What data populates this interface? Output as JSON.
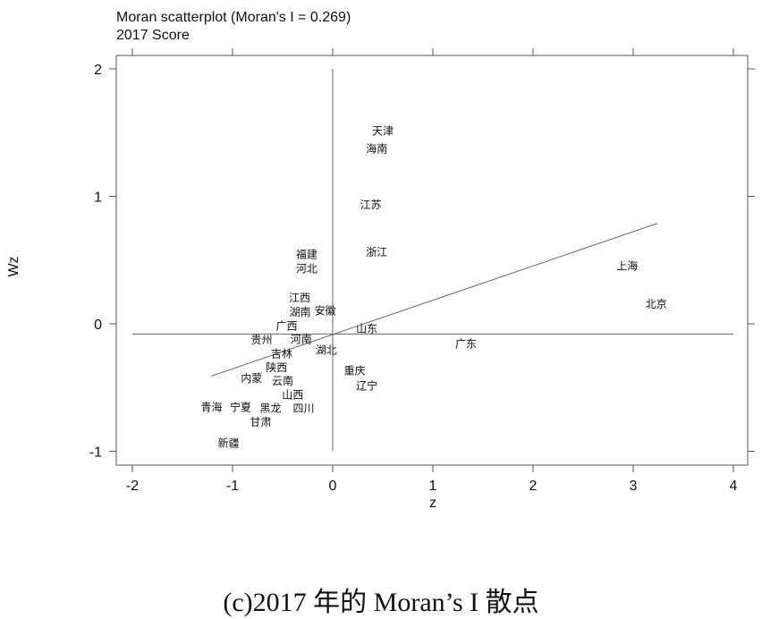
{
  "chart_data": {
    "type": "scatter",
    "title": "Moran scatterplot (Moran's I = 0.269)",
    "subtitle": "2017 Score",
    "xlabel": "z",
    "ylabel": "Wz",
    "xlim": [
      -2,
      4
    ],
    "ylim": [
      -1,
      2
    ],
    "xticks": [
      "-2",
      "-1",
      "0",
      "1",
      "2",
      "3",
      "4"
    ],
    "yticks": [
      "-1",
      "0",
      "1",
      "2"
    ],
    "grid": false,
    "marker": "text-label",
    "reference_lines": {
      "vertical_x": 0,
      "horizontal_y": -0.08
    },
    "fit_line": {
      "slope": 0.269,
      "intercept": -0.084,
      "x_range": [
        -1.21,
        3.24
      ]
    },
    "points": [
      {
        "label": "天津",
        "x": 0.5,
        "y": 1.52
      },
      {
        "label": "海南",
        "x": 0.44,
        "y": 1.38
      },
      {
        "label": "江苏",
        "x": 0.38,
        "y": 0.94
      },
      {
        "label": "浙江",
        "x": 0.44,
        "y": 0.57
      },
      {
        "label": "福建",
        "x": -0.26,
        "y": 0.53
      },
      {
        "label": "河北",
        "x": -0.26,
        "y": 0.46
      },
      {
        "label": "江西",
        "x": -0.33,
        "y": 0.21
      },
      {
        "label": "安徽",
        "x": -0.08,
        "y": 0.11
      },
      {
        "label": "湖南",
        "x": -0.32,
        "y": 0.04
      },
      {
        "label": "广西",
        "x": -0.46,
        "y": 0.0
      },
      {
        "label": "山东",
        "x": 0.34,
        "y": -0.03
      },
      {
        "label": "上海",
        "x": 2.94,
        "y": 0.46
      },
      {
        "label": "北京",
        "x": 3.23,
        "y": 0.16
      },
      {
        "label": "广东",
        "x": 1.33,
        "y": -0.15
      },
      {
        "label": "河南",
        "x": -0.31,
        "y": -0.14
      },
      {
        "label": "湖北",
        "x": -0.07,
        "y": -0.2
      },
      {
        "label": "贵州",
        "x": -0.71,
        "y": -0.22
      },
      {
        "label": "吉林",
        "x": -0.51,
        "y": -0.31
      },
      {
        "label": "陕西",
        "x": -0.6,
        "y": -0.36
      },
      {
        "label": "内蒙",
        "x": -0.77,
        "y": -0.42
      },
      {
        "label": "山西",
        "x": -0.4,
        "y": -0.44
      },
      {
        "label": "云南",
        "x": -0.5,
        "y": -0.46
      },
      {
        "label": "四川",
        "x": -0.29,
        "y": -0.53
      },
      {
        "label": "重庆",
        "x": 0.22,
        "y": -0.36
      },
      {
        "label": "辽宁",
        "x": 0.34,
        "y": -0.48
      },
      {
        "label": "黑龙",
        "x": -0.62,
        "y": -0.61
      },
      {
        "label": "青海",
        "x": -1.21,
        "y": -0.65
      },
      {
        "label": "宁夏",
        "x": -0.92,
        "y": -0.65
      },
      {
        "label": "甘肃",
        "x": -0.72,
        "y": -0.76
      },
      {
        "label": "新疆",
        "x": -1.04,
        "y": -0.93
      }
    ]
  },
  "caption": "(c)2017 年的 Moran’s I 散点"
}
